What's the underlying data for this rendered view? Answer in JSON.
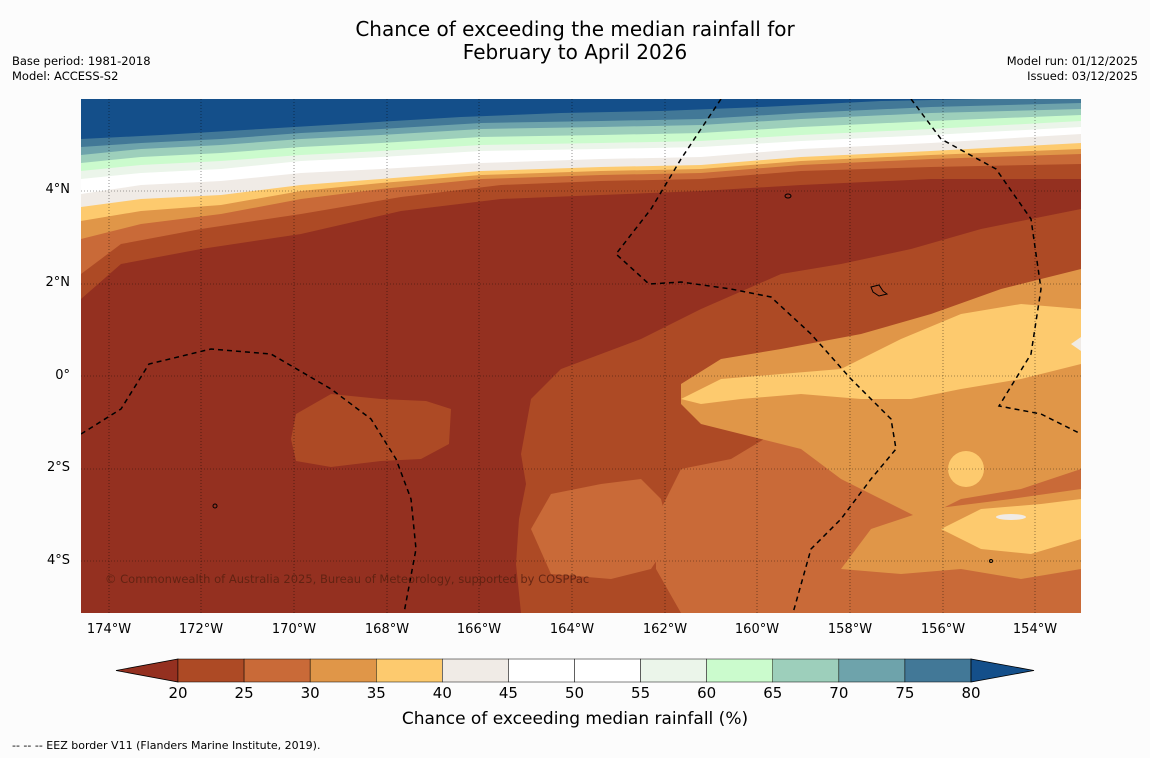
{
  "title": {
    "line1": "Chance of exceeding the median rainfall for",
    "line2": "February to April 2026"
  },
  "header_left": {
    "base_period": "Base period: 1981-2018",
    "model": "Model: ACCESS-S2"
  },
  "header_right": {
    "model_run": "Model run: 01/12/2025",
    "issued": "Issued: 03/12/2025"
  },
  "map": {
    "copyright": "© Commonwealth of Australia 2025, Bureau of Meteorology, supported by COSPPac",
    "lat_labels": [
      "4°N",
      "2°N",
      "0°",
      "2°S",
      "4°S"
    ],
    "lon_labels": [
      "174°W",
      "172°W",
      "170°W",
      "168°W",
      "166°W",
      "164°W",
      "162°W",
      "160°W",
      "158°W",
      "156°W",
      "154°W"
    ]
  },
  "colorbar": {
    "ticks": [
      "20",
      "25",
      "30",
      "35",
      "40",
      "45",
      "50",
      "55",
      "60",
      "65",
      "70",
      "75",
      "80"
    ],
    "colors": [
      "#943020",
      "#ad4a25",
      "#c96a38",
      "#e09648",
      "#fdca6e",
      "#f0ebe6",
      "#ffffff",
      "#ffffff",
      "#ebf5ea",
      "#cbfbcd",
      "#9dcfbb",
      "#6ea3ab",
      "#427897",
      "#144f8a"
    ],
    "label": "Chance of exceeding median rainfall (%)"
  },
  "footnote": "-- -- -- EEZ border V11 (Flanders Marine Institute, 2019)."
}
